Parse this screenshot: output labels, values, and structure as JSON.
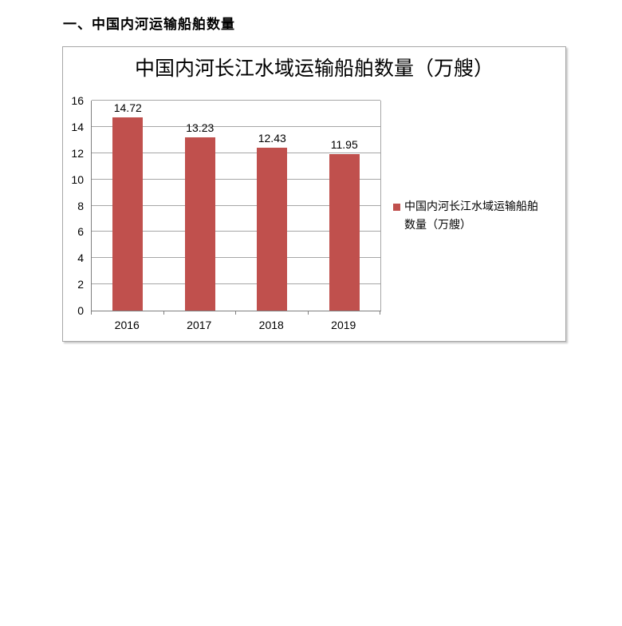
{
  "page": {
    "heading": "一、中国内河运输船舶数量"
  },
  "legend": {
    "lines": [
      "中国内河长江水域运输船舶",
      "数量（万艘）"
    ]
  },
  "colors": {
    "bar": "#C0504D",
    "gridline": "#A6A6A6",
    "axis": "#7F7F7F",
    "frame_border": "#A6A6A6"
  },
  "chart_data": {
    "type": "bar",
    "title": "中国内河长江水域运输船舶数量（万艘）",
    "categories": [
      "2016",
      "2017",
      "2018",
      "2019"
    ],
    "series": [
      {
        "name": "中国内河长江水域运输船舶数量（万艘）",
        "values": [
          14.72,
          13.23,
          12.43,
          11.95
        ]
      }
    ],
    "data_labels": [
      "14.72",
      "13.23",
      "12.43",
      "11.95"
    ],
    "xlabel": "",
    "ylabel": "",
    "ylim": [
      0,
      16
    ],
    "ytick_step": 2,
    "yticks": [
      0,
      2,
      4,
      6,
      8,
      10,
      12,
      14,
      16
    ],
    "grid": true,
    "legend_position": "right",
    "bar_color": "#C0504D"
  }
}
